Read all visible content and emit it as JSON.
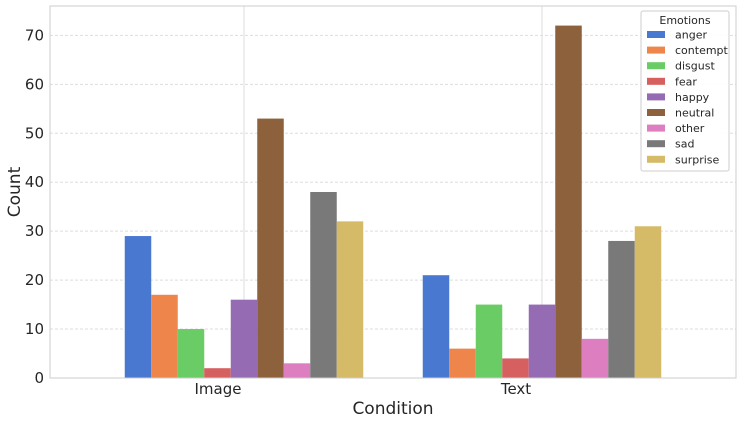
{
  "chart_data": {
    "type": "bar",
    "title": "",
    "xlabel": "Condition",
    "ylabel": "Count",
    "categories": [
      "Image",
      "Text"
    ],
    "ylim": [
      0,
      76
    ],
    "yticks": [
      0,
      10,
      20,
      30,
      40,
      50,
      60,
      70
    ],
    "grid": true,
    "legend": {
      "title": "Emotions",
      "placement": "top-right"
    },
    "series": [
      {
        "name": "anger",
        "color": "#4878d0",
        "values": [
          29,
          21
        ]
      },
      {
        "name": "contempt",
        "color": "#ee854a",
        "values": [
          17,
          6
        ]
      },
      {
        "name": "disgust",
        "color": "#6acc64",
        "values": [
          10,
          15
        ]
      },
      {
        "name": "fear",
        "color": "#d65f5f",
        "values": [
          2,
          4
        ]
      },
      {
        "name": "happy",
        "color": "#956cb4",
        "values": [
          16,
          15
        ]
      },
      {
        "name": "neutral",
        "color": "#8c613c",
        "values": [
          53,
          72
        ]
      },
      {
        "name": "other",
        "color": "#dc7ec0",
        "values": [
          3,
          8
        ]
      },
      {
        "name": "sad",
        "color": "#797979",
        "values": [
          38,
          28
        ]
      },
      {
        "name": "surprise",
        "color": "#d5bb67",
        "values": [
          32,
          31
        ]
      }
    ]
  }
}
